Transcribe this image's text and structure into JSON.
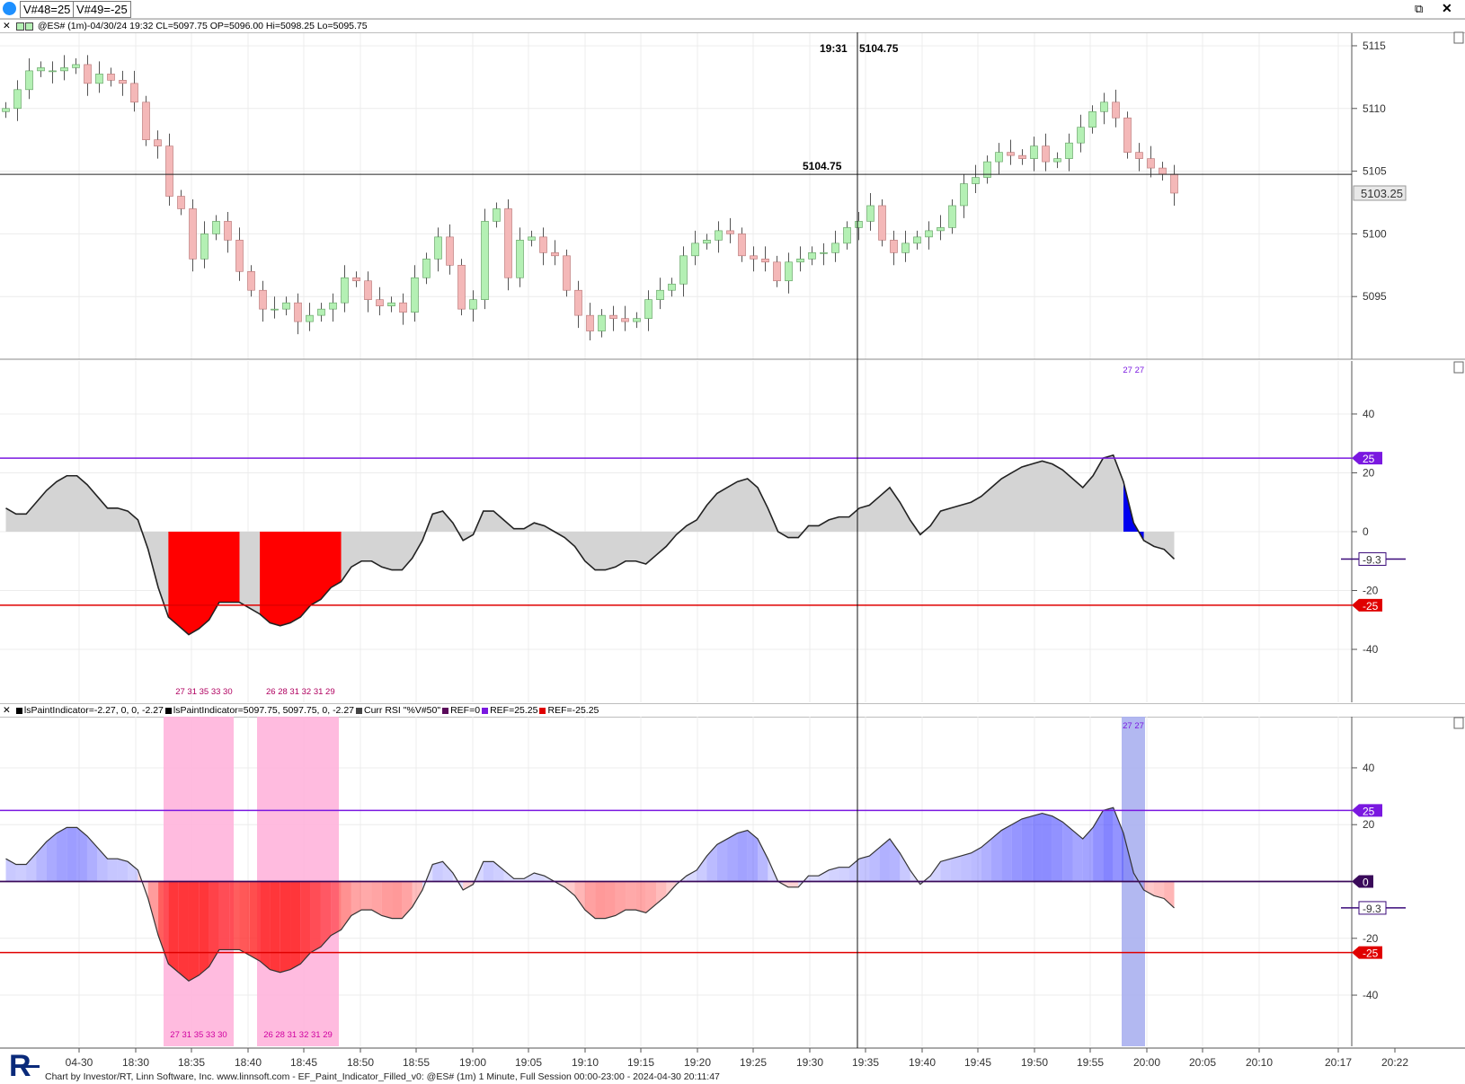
{
  "topbar": {
    "v48": "V#48=25",
    "v49": "V#49=-25"
  },
  "price_header": "@ES# (1m)-04/30/24 19:32 CL=5097.75 OP=5096.00 Hi=5098.25 Lo=5095.75",
  "indicator_header": {
    "items": [
      {
        "label": "lsPaintIndicator=-2.27, 0, 0, -2.27",
        "color": "#000000"
      },
      {
        "label": "lsPaintIndicator=5097.75, 5097.75, 0, -2.27",
        "color": "#000000"
      },
      {
        "label": "Curr RSI \"%V#50\"",
        "color": "#444444"
      },
      {
        "label": "REF=0",
        "color": "#5a0a5a"
      },
      {
        "label": "REF=25.25",
        "color": "#7a18e0"
      },
      {
        "label": "REF=-25.25",
        "color": "#e00000"
      }
    ]
  },
  "footer": "Chart by Investor/RT, Linn Software, Inc. www.linnsoft.com - EF_Paint_Indicator_Filled_v0: @ES# (1m) 1 Minute, Full Session 00:00-23:00 - 2024-04-30 20:11:47",
  "colors": {
    "up": "#b4f0b4",
    "down": "#f4b8b8",
    "purple": "#7a18e0",
    "red": "#e00000",
    "blue": "#0000ee",
    "paint_red": "#ff0000",
    "pink": "#ffb4dc",
    "gray": "#d4d4d4"
  },
  "chart_data": [
    {
      "type": "candlestick",
      "title": "",
      "crosshair": {
        "time": "19:31",
        "price": "5104.75"
      },
      "current_price": "5103.25",
      "y_ticks": [
        "5115",
        "5110",
        "5105",
        "5100",
        "5095"
      ],
      "ylim": [
        5090,
        5116
      ],
      "x_ticks": [
        "04-30",
        "18:30",
        "18:35",
        "18:40",
        "18:45",
        "18:50",
        "18:55",
        "19:00",
        "19:05",
        "19:10",
        "19:15",
        "19:20",
        "19:25",
        "19:30",
        "19:35",
        "19:40",
        "19:45",
        "19:50",
        "19:55",
        "20:00",
        "20:05",
        "20:10",
        "20:17",
        "20:22"
      ],
      "closes": [
        5110,
        5111.5,
        5113,
        5113.25,
        5113,
        5113.25,
        5113.5,
        5112,
        5112.75,
        5112.25,
        5112,
        5110.5,
        5107.5,
        5107,
        5103,
        5102,
        5098,
        5100,
        5101,
        5099.5,
        5097,
        5095.5,
        5094,
        5094,
        5094.5,
        5093,
        5093.5,
        5094,
        5094.5,
        5096.5,
        5096.25,
        5094.75,
        5094.25,
        5094.5,
        5093.75,
        5096.5,
        5098,
        5099.75,
        5097.5,
        5094,
        5094.75,
        5101,
        5102,
        5096.5,
        5099.5,
        5099.75,
        5098.5,
        5098.25,
        5095.5,
        5093.5,
        5092.25,
        5093.5,
        5093.25,
        5093,
        5093.25,
        5094.75,
        5095.5,
        5096,
        5098.25,
        5099.25,
        5099.5,
        5100.25,
        5100,
        5098.25,
        5098,
        5097.75,
        5096.25,
        5097.75,
        5098,
        5098.5,
        5098.5,
        5099.25,
        5100.5,
        5101,
        5102.25,
        5099.5,
        5098.5,
        5099.25,
        5099.75,
        5100.25,
        5100.5,
        5102.25,
        5104,
        5104.5,
        5105.75,
        5106.5,
        5106.25,
        5106,
        5107,
        5105.75,
        5106,
        5107.25,
        5108.5,
        5109.75,
        5110.5,
        5109.25,
        5106.5,
        5106,
        5105.25,
        5104.75,
        5103.25
      ],
      "opens": [
        5109.75,
        5110,
        5111.5,
        5113,
        5113,
        5113,
        5113.25,
        5113.5,
        5112,
        5112.75,
        5112.25,
        5112,
        5110.5,
        5107.5,
        5107,
        5103,
        5102,
        5098,
        5100,
        5101,
        5099.5,
        5097,
        5095.5,
        5094,
        5094,
        5094.5,
        5093,
        5093.5,
        5094,
        5094.5,
        5096.5,
        5096.25,
        5094.75,
        5094.25,
        5094.5,
        5093.75,
        5096.5,
        5098,
        5099.75,
        5097.5,
        5094,
        5094.75,
        5101,
        5102,
        5096.5,
        5099.5,
        5099.75,
        5098.5,
        5098.25,
        5095.5,
        5093.5,
        5092.25,
        5093.5,
        5093.25,
        5093,
        5093.25,
        5094.75,
        5095.5,
        5096,
        5098.25,
        5099.25,
        5099.5,
        5100.25,
        5100,
        5098.25,
        5098,
        5097.75,
        5096.25,
        5097.75,
        5098,
        5098.5,
        5098.5,
        5099.25,
        5100.5,
        5101,
        5102.25,
        5099.5,
        5098.5,
        5099.25,
        5099.75,
        5100.25,
        5100.5,
        5102.25,
        5104,
        5104.5,
        5105.75,
        5106.5,
        5106.25,
        5106,
        5107,
        5105.75,
        5106,
        5107.25,
        5108.5,
        5109.75,
        5110.5,
        5109.25,
        5106.5,
        5106,
        5105.25,
        5104.75
      ]
    },
    {
      "type": "area",
      "title": "",
      "y_ticks": [
        "40",
        "20",
        "0",
        "-20",
        "-40"
      ],
      "ylim": [
        -58,
        58
      ],
      "ref_lines": [
        {
          "value": 25,
          "label": "25"
        },
        {
          "value": -25,
          "label": "-25"
        }
      ],
      "last_value_label": "-9.3",
      "paint_groups": [
        {
          "label": "27 31 35 33 30",
          "start": 14,
          "end": 19,
          "side": "low"
        },
        {
          "label": "26 28 31 32 31 29",
          "start": 22,
          "end": 28,
          "side": "low"
        },
        {
          "label": "27 27",
          "start": 96,
          "end": 97,
          "side": "high"
        }
      ],
      "values": [
        8,
        6,
        6,
        10,
        14,
        17,
        19,
        19,
        16,
        12,
        8,
        8,
        7,
        4,
        -6,
        -19,
        -29,
        -32,
        -35,
        -33,
        -30,
        -24,
        -24,
        -24,
        -26,
        -28,
        -31,
        -32,
        -31,
        -29,
        -25,
        -23,
        -19,
        -17,
        -12,
        -10,
        -10,
        -12,
        -13,
        -13,
        -9,
        -3,
        6,
        7,
        3,
        -3,
        -1,
        7,
        7,
        4,
        1,
        1,
        3,
        2,
        0,
        -2,
        -5,
        -10,
        -13,
        -13,
        -12,
        -10,
        -10,
        -11,
        -8,
        -5,
        -1,
        2,
        4,
        9,
        13,
        15,
        17,
        18,
        15,
        8,
        0,
        -2,
        -2,
        2,
        2,
        4,
        5,
        5,
        8,
        9,
        12,
        15,
        10,
        4,
        -1,
        2,
        7,
        8,
        9,
        10,
        12,
        15,
        18,
        20,
        22,
        23,
        24,
        23,
        21,
        18,
        15,
        19,
        25,
        26,
        17,
        3,
        -3,
        -5,
        -6,
        -9.3
      ]
    },
    {
      "type": "heatmap-area",
      "title": "",
      "y_ticks": [
        "40",
        "20",
        "0",
        "-20",
        "-40"
      ],
      "ylim": [
        -58,
        58
      ],
      "ref_lines": [
        {
          "value": 25,
          "label": "25"
        },
        {
          "value": 0,
          "label": "0"
        },
        {
          "value": -25,
          "label": "-25"
        }
      ],
      "last_value_label": "-9.3",
      "paint_groups": [
        {
          "label": "27 31 35 33 30",
          "start": 14,
          "end": 19
        },
        {
          "label": "26 28 31 32 31 29",
          "start": 22,
          "end": 28
        },
        {
          "label": "27 27",
          "start": 96,
          "end": 97
        }
      ]
    }
  ]
}
